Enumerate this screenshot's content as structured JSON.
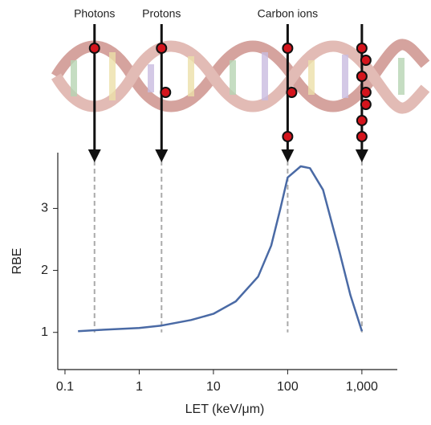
{
  "chart_data": {
    "type": "line",
    "x_label": "LET (keV/μm)",
    "y_label": "RBE",
    "log_x": true,
    "xlim": [
      0.08,
      3000
    ],
    "ylim": [
      0.4,
      3.9
    ],
    "xticks": [
      0.1,
      1,
      10,
      100,
      {
        "value": 1000,
        "label": "1,000"
      }
    ],
    "yticks": [
      1,
      2,
      3
    ],
    "series": [
      {
        "color": "#4a6aa5",
        "x": [
          0.15,
          0.3,
          1,
          2,
          5,
          10,
          20,
          40,
          60,
          80,
          100,
          150,
          200,
          300,
          500,
          700,
          1000
        ],
        "values": [
          1.02,
          1.04,
          1.07,
          1.11,
          1.2,
          1.3,
          1.5,
          1.9,
          2.4,
          3.0,
          3.5,
          3.68,
          3.65,
          3.3,
          2.3,
          1.6,
          1.02
        ]
      }
    ],
    "annotations": [
      {
        "text": "Photons",
        "x": 0.25
      },
      {
        "text": "Protons",
        "x": 2
      },
      {
        "text": "Carbon ions",
        "x": 100
      },
      {
        "text": null,
        "x": 1000
      }
    ]
  }
}
